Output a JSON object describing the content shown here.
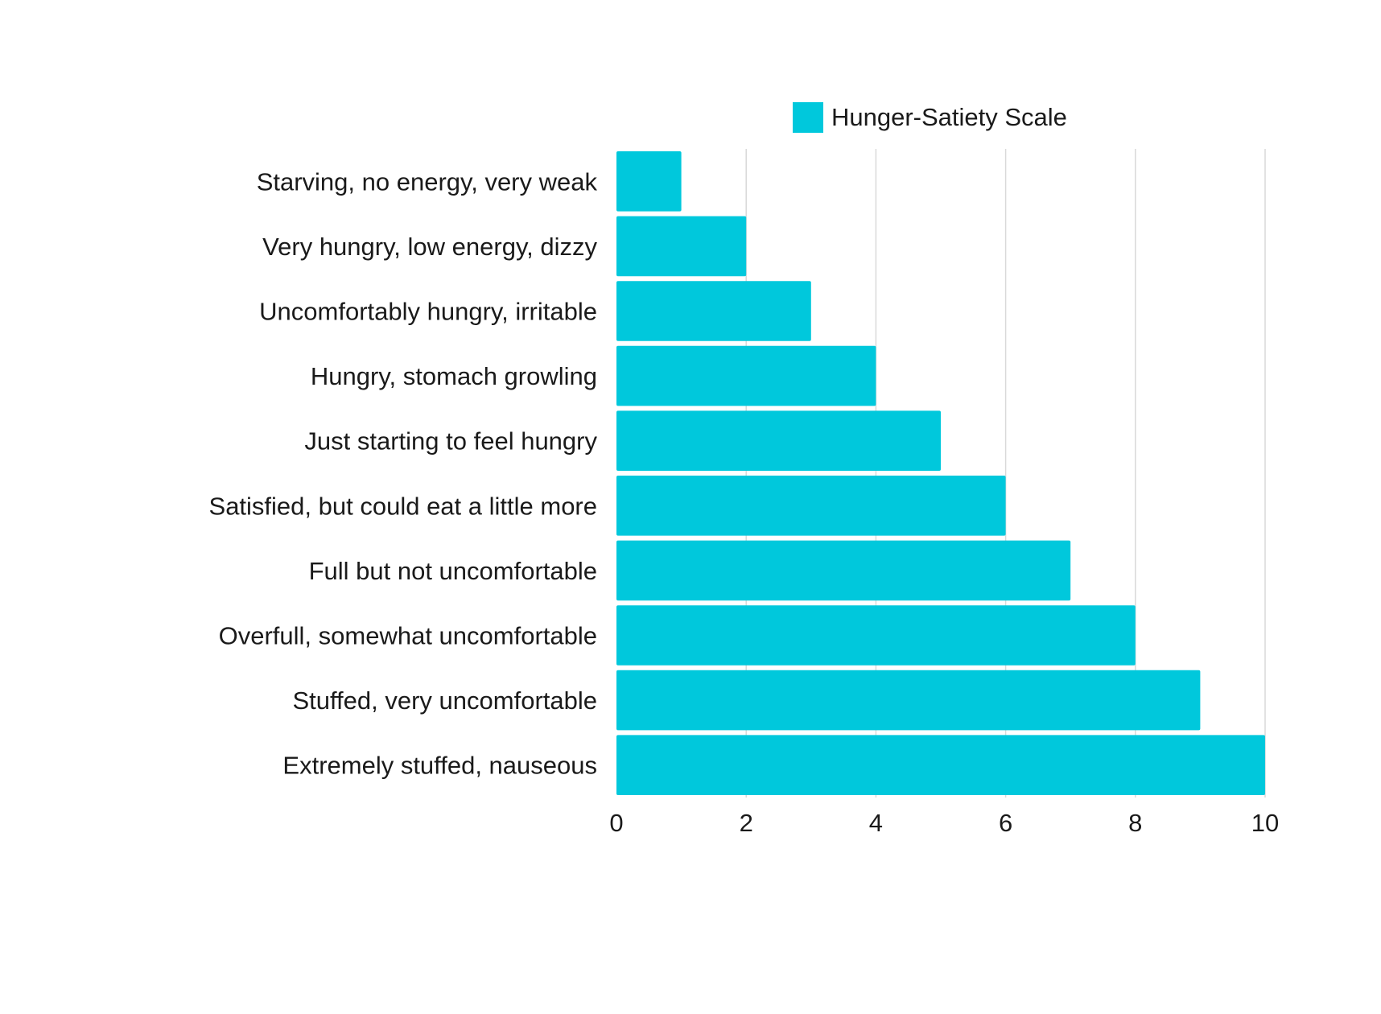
{
  "chart_data": {
    "type": "bar",
    "orientation": "horizontal",
    "categories": [
      "Starving, no energy, very weak",
      "Very hungry, low energy, dizzy",
      "Uncomfortably hungry, irritable",
      "Hungry, stomach growling",
      "Just starting to feel hungry",
      "Satisfied, but could eat a little more",
      "Full but not uncomfortable",
      "Overfull, somewhat uncomfortable",
      "Stuffed, very uncomfortable",
      "Extremely stuffed, nauseous"
    ],
    "series": [
      {
        "name": "Hunger-Satiety Scale",
        "values": [
          1,
          2,
          3,
          4,
          5,
          6,
          7,
          8,
          9,
          10
        ],
        "color": "#00c8dc"
      }
    ],
    "xlim": [
      0,
      10
    ],
    "xticks": [
      "0",
      "2",
      "4",
      "6",
      "8",
      "10"
    ],
    "grid": true,
    "legend": "top"
  }
}
